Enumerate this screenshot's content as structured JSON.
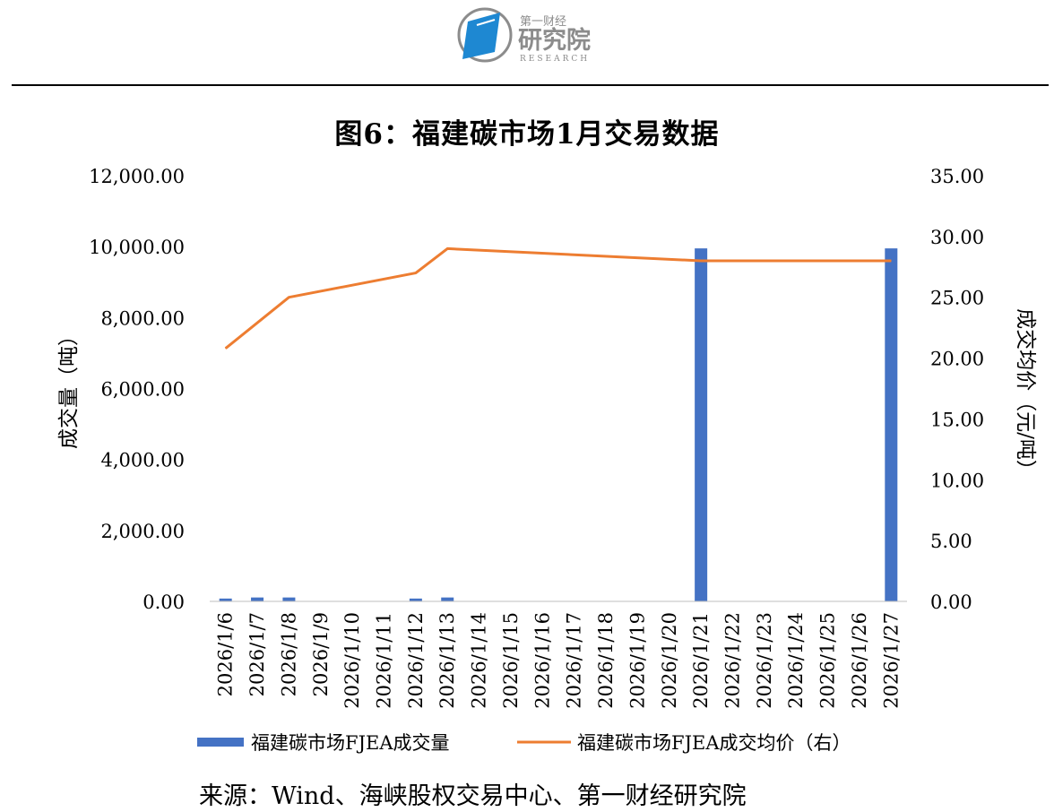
{
  "header": {
    "logo_text_small": "第一财经",
    "logo_text_large": "研究院",
    "logo_text_sub": "RESEARCH"
  },
  "colors": {
    "bar": "#4472C4",
    "line": "#ED7D31",
    "logo_blue": "#1E88D2",
    "logo_gray": "#8C8C8C"
  },
  "chart_data": {
    "type": "bar+line",
    "title": "图6：福建碳市场1月交易数据",
    "categories": [
      "2026/1/6",
      "2026/1/7",
      "2026/1/8",
      "2026/1/9",
      "2026/1/10",
      "2026/1/11",
      "2026/1/12",
      "2026/1/13",
      "2026/1/14",
      "2026/1/15",
      "2026/1/16",
      "2026/1/17",
      "2026/1/18",
      "2026/1/19",
      "2026/1/20",
      "2026/1/21",
      "2026/1/22",
      "2026/1/23",
      "2026/1/24",
      "2026/1/25",
      "2026/1/26",
      "2026/1/27"
    ],
    "series": [
      {
        "name": "福建碳市场FJEA成交量",
        "kind": "bar",
        "axis": "left",
        "values": [
          80,
          110,
          110,
          null,
          null,
          null,
          80,
          110,
          null,
          null,
          null,
          null,
          null,
          null,
          null,
          9950,
          null,
          null,
          null,
          null,
          null,
          9950
        ]
      },
      {
        "name": "福建碳市场FJEA成交均价（右）",
        "kind": "line",
        "axis": "right",
        "values": [
          20.8,
          null,
          25.0,
          null,
          null,
          null,
          27.0,
          29.0,
          null,
          null,
          null,
          null,
          null,
          null,
          null,
          28.0,
          null,
          null,
          null,
          null,
          null,
          28.0
        ]
      }
    ],
    "ylabel_left": "成交量（吨）",
    "ylabel_right": "成交均价（元/吨）",
    "ylim_left": [
      0,
      12000
    ],
    "ylim_right": [
      0,
      35
    ],
    "yticks_left": [
      "0.00",
      "2,000.00",
      "4,000.00",
      "6,000.00",
      "8,000.00",
      "10,000.00",
      "12,000.00"
    ],
    "yticks_right": [
      "0.00",
      "5.00",
      "10.00",
      "15.00",
      "20.00",
      "25.00",
      "30.00",
      "35.00"
    ],
    "legend_position": "bottom",
    "grid": false
  },
  "source": "来源：Wind、海峡股权交易中心、第一财经研究院"
}
